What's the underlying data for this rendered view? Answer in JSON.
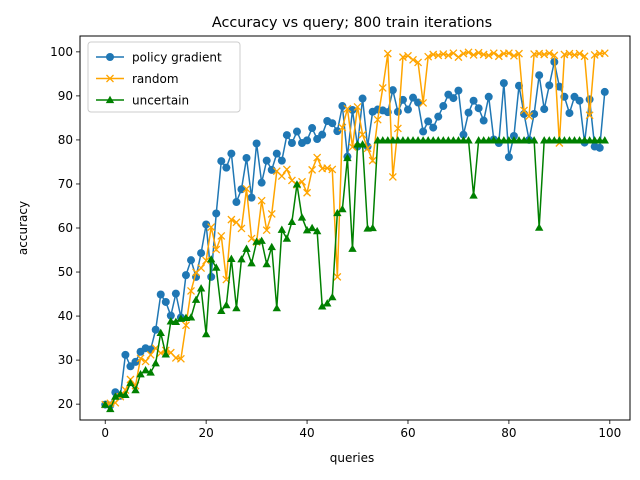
{
  "chart_data": {
    "type": "line",
    "title": "Accuracy vs query; 800 train iterations",
    "xlabel": "queries",
    "ylabel": "accuracy",
    "xlim": [
      -5,
      104
    ],
    "ylim": [
      16.4,
      103.6
    ],
    "x_ticks": [
      0,
      20,
      40,
      60,
      80,
      100
    ],
    "y_ticks": [
      20,
      30,
      40,
      50,
      60,
      70,
      80,
      90,
      100
    ],
    "grid": false,
    "legend_position": "upper-left",
    "series": [
      {
        "name": "policy gradient",
        "color": "#1f77b4",
        "marker": "circle",
        "y": [
          19.9,
          19.7,
          22.7,
          21.9,
          31.2,
          28.6,
          29.6,
          31.9,
          32.7,
          32.4,
          36.9,
          44.9,
          43.2,
          40.1,
          45.1,
          39.7,
          49.3,
          52.7,
          48.9,
          54.3,
          60.8,
          48.9,
          63.3,
          75.2,
          73.7,
          76.9,
          65.9,
          68.8,
          75.9,
          66.9,
          79.2,
          70.3,
          75.3,
          73.2,
          76.9,
          75.3,
          81.1,
          79.3,
          81.9,
          79.3,
          79.9,
          82.7,
          80.2,
          81.2,
          84.3,
          83.8,
          82.0,
          87.7,
          76.2,
          86.8,
          78.5,
          89.4,
          78.5,
          86.4,
          86.9,
          86.7,
          86.3,
          91.3,
          86.4,
          89.1,
          86.9,
          89.6,
          88.5,
          81.9,
          84.2,
          82.8,
          85.3,
          87.7,
          90.3,
          89.5,
          91.2,
          81.2,
          86.2,
          88.9,
          87.2,
          84.4,
          89.8,
          80.1,
          79.3,
          92.9,
          76.1,
          80.9,
          92.3,
          85.9,
          80.0,
          85.9,
          94.7,
          87.0,
          92.4,
          97.7,
          92.1,
          89.8,
          86.1,
          89.8,
          88.9,
          79.4,
          89.2,
          78.5,
          78.2,
          90.9
        ]
      },
      {
        "name": "random",
        "color": "#ffa500",
        "marker": "x",
        "y": [
          19.9,
          20.2,
          20.3,
          21.7,
          23.2,
          25.6,
          24.2,
          30.4,
          29.7,
          31.2,
          32.7,
          31.6,
          32.2,
          31.7,
          30.5,
          30.3,
          37.9,
          45.7,
          49.9,
          50.9,
          52.6,
          60.2,
          55.1,
          58.2,
          48.3,
          61.9,
          61.3,
          59.9,
          68.9,
          57.6,
          56.8,
          66.2,
          59.5,
          63.2,
          72.9,
          71.8,
          73.3,
          70.8,
          69.8,
          70.5,
          68.0,
          73.2,
          76.0,
          73.5,
          73.6,
          73.3,
          48.9,
          82.8,
          87.1,
          78.4,
          87.5,
          81.2,
          78.1,
          75.3,
          84.6,
          91.8,
          99.6,
          71.6,
          82.6,
          98.8,
          99.1,
          98.2,
          97.6,
          88.4,
          98.9,
          99.4,
          99.2,
          99.5,
          99.2,
          99.7,
          98.8,
          99.6,
          99.9,
          99.3,
          99.8,
          99.4,
          99.2,
          99.7,
          99.0,
          99.6,
          99.7,
          99.1,
          99.6,
          86.7,
          85.4,
          99.5,
          99.6,
          99.4,
          99.7,
          99.2,
          79.3,
          99.4,
          99.6,
          99.3,
          99.6,
          99.0,
          85.6,
          99.3,
          99.6,
          99.7
        ]
      },
      {
        "name": "uncertain",
        "color": "#008000",
        "marker": "triangle",
        "y": [
          19.9,
          18.9,
          21.7,
          22.3,
          22.1,
          24.8,
          23.2,
          26.8,
          27.7,
          27.2,
          29.3,
          36.2,
          31.3,
          38.8,
          38.7,
          39.4,
          39.6,
          39.7,
          43.7,
          46.3,
          35.9,
          52.9,
          51.0,
          41.2,
          42.5,
          53.0,
          41.8,
          52.9,
          55.3,
          52.0,
          56.9,
          57.1,
          51.8,
          55.7,
          41.8,
          59.6,
          57.6,
          61.4,
          69.9,
          62.4,
          59.5,
          60.0,
          59.3,
          42.2,
          42.9,
          44.3,
          63.4,
          64.3,
          75.9,
          55.3,
          79.0,
          79.0,
          59.9,
          60.0,
          79.9,
          79.9,
          79.9,
          79.9,
          79.9,
          79.9,
          79.9,
          79.9,
          79.9,
          79.9,
          79.9,
          79.9,
          79.9,
          79.9,
          79.9,
          79.9,
          79.9,
          79.9,
          79.9,
          67.4,
          79.9,
          79.9,
          79.9,
          79.9,
          79.9,
          79.9,
          79.9,
          79.9,
          79.9,
          79.9,
          79.9,
          79.9,
          60.1,
          79.9,
          79.9,
          79.9,
          79.9,
          79.9,
          79.9,
          79.9,
          79.9,
          79.9,
          79.9,
          79.9,
          79.9,
          79.9
        ]
      }
    ]
  }
}
